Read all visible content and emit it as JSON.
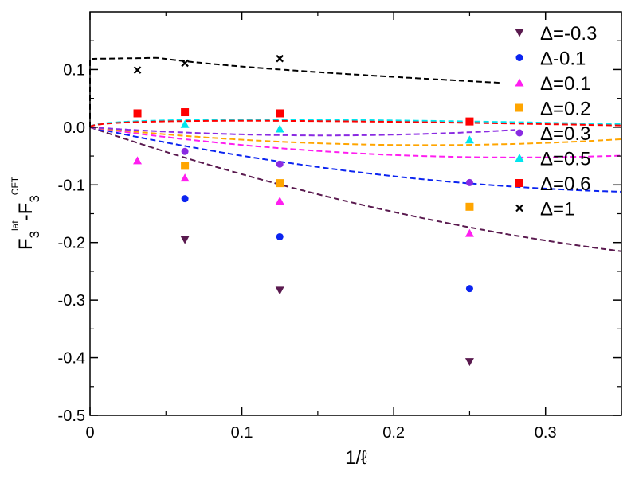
{
  "chart_data": {
    "type": "scatter",
    "title": "",
    "xlabel": "1/ℓ",
    "ylabel": "F3^lat - F3^CFT",
    "ylabel_parts": {
      "base1": "F",
      "sub1": "3",
      "sup1": "lat",
      "minus": "-",
      "base2": "F",
      "sub2": "3",
      "sup2": "CFT"
    },
    "xlim": [
      0,
      0.35
    ],
    "ylim": [
      -0.5,
      0.2
    ],
    "xticks": [
      0,
      0.1,
      0.2,
      0.3
    ],
    "xtick_labels": [
      "0",
      "0.1",
      "0.2",
      "0.3"
    ],
    "yticks": [
      -0.5,
      -0.4,
      -0.3,
      -0.2,
      -0.1,
      0.0,
      0.1
    ],
    "ytick_labels": [
      "-0.5",
      "-0.4",
      "-0.3",
      "-0.2",
      "-0.1",
      "0.0",
      "0.1"
    ],
    "grid": false,
    "legend_position": "top-right",
    "series": [
      {
        "name": "Δ=-0.3",
        "color": "#5a1a4f",
        "marker": "triangle-down",
        "x": [
          0.0625,
          0.125,
          0.25
        ],
        "y": [
          -0.195,
          -0.283,
          -0.407
        ],
        "fit_a": -0.895,
        "fit_b": 0.0,
        "fit_c": 0.8,
        "fit_xmax": 0.35
      },
      {
        "name": "Δ-0.1",
        "color": "#0b24f0",
        "marker": "circle",
        "x": [
          0.0625,
          0.125,
          0.25
        ],
        "y": [
          -0.124,
          -0.19,
          -0.28
        ],
        "fit_a": -0.565,
        "fit_b": 0.0,
        "fit_c": 0.7,
        "fit_xmax": 0.35
      },
      {
        "name": "Δ=0.1",
        "color": "#ff1ef0",
        "marker": "triangle-up",
        "x": [
          0.03125,
          0.0625,
          0.125,
          0.25
        ],
        "y": [
          -0.058,
          -0.088,
          -0.128,
          -0.184
        ],
        "fit_a": -0.375,
        "fit_b": 0.0,
        "fit_c": 0.67,
        "fit_xmax": 0.35
      },
      {
        "name": "Δ=0.2",
        "color": "#ffa500",
        "marker": "square",
        "x": [
          0.0625,
          0.125,
          0.25
        ],
        "y": [
          -0.067,
          -0.097,
          -0.138
        ],
        "fit_a": -0.28,
        "fit_b": 0.0,
        "fit_c": 0.63,
        "fit_xmax": 0.35
      },
      {
        "name": "Δ=0.3",
        "color": "#8a2be2",
        "marker": "circle",
        "x": [
          0.0625,
          0.125,
          0.25
        ],
        "y": [
          -0.042,
          -0.064,
          -0.096
        ],
        "fit_a": -0.185,
        "fit_b": 0.0,
        "fit_c": 0.6,
        "fit_xmax": 0.28
      },
      {
        "name": "Δ=0.5",
        "color": "#00e5ee",
        "marker": "triangle-up",
        "x": [
          0.0625,
          0.125,
          0.25
        ],
        "y": [
          0.005,
          -0.003,
          -0.022
        ],
        "fit_a": -0.12,
        "fit_b": 0.08,
        "fit_c": 0.0,
        "fit_xmax": 0.35
      },
      {
        "name": "Δ=0.6",
        "color": "#ff0000",
        "marker": "square",
        "x": [
          0.03125,
          0.0625,
          0.125,
          0.25
        ],
        "y": [
          0.024,
          0.026,
          0.024,
          0.01
        ],
        "fit_a": -0.11,
        "fit_b": 0.07,
        "fit_c": 0.0,
        "fit_xmax": 0.35
      },
      {
        "name": "Δ=1",
        "color": "#000000",
        "marker": "x",
        "x": [
          0.03125,
          0.0625,
          0.125
        ],
        "y": [
          0.099,
          0.111,
          0.119
        ],
        "fit_a": 0.0,
        "fit_b": 0.0,
        "fit_c": 0.0,
        "fit_xmax": 0.27,
        "fit_type": "log"
      }
    ]
  }
}
